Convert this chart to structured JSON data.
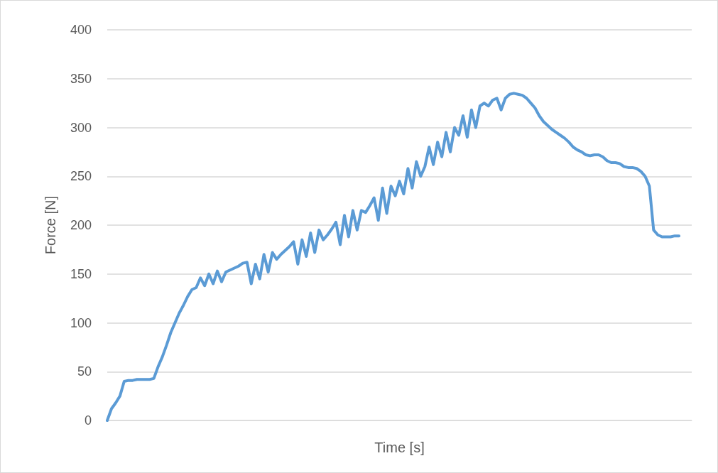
{
  "chart_data": {
    "type": "line",
    "xlabel": "Time [s]",
    "ylabel": "Force [N]",
    "categories": [
      null,
      null,
      null,
      null,
      null,
      null,
      null,
      null,
      null,
      null,
      null,
      null,
      null,
      null,
      null,
      null,
      null,
      null,
      null,
      null,
      null,
      null,
      null,
      null,
      null,
      null,
      null,
      null,
      null,
      null,
      null,
      null,
      null,
      null,
      null,
      null,
      null,
      null,
      null,
      null,
      null,
      null,
      null,
      null,
      null,
      null,
      null,
      null,
      null,
      null,
      null,
      null,
      null,
      null,
      null,
      null,
      null,
      null,
      null,
      null,
      null,
      null,
      null,
      null,
      null,
      null,
      null,
      null,
      null,
      null,
      null,
      null,
      null,
      null,
      null,
      null,
      null,
      null,
      null,
      null,
      null,
      null,
      null,
      null,
      null,
      null,
      null,
      null,
      null,
      null,
      null,
      null,
      null,
      null,
      null,
      null,
      null,
      null,
      null,
      null,
      null,
      null,
      null,
      null,
      null,
      null,
      null,
      null,
      null,
      null,
      null,
      null,
      null,
      null,
      null,
      null,
      null,
      null,
      null,
      null,
      null,
      null,
      null,
      null,
      null,
      null,
      null,
      null,
      null,
      null,
      null,
      null,
      null,
      null,
      null,
      null,
      null,
      null,
      null
    ],
    "series": [
      {
        "color": "#5b9bd5",
        "values": [
          0,
          12,
          18,
          25,
          40,
          41,
          41,
          42,
          42,
          42,
          42,
          43,
          55,
          65,
          77,
          90,
          100,
          110,
          118,
          127,
          134,
          136,
          146,
          138,
          150,
          140,
          153,
          142,
          152,
          154,
          156,
          158,
          161,
          162,
          140,
          160,
          145,
          170,
          152,
          172,
          165,
          170,
          174,
          178,
          183,
          160,
          185,
          168,
          192,
          172,
          195,
          185,
          190,
          196,
          203,
          180,
          210,
          188,
          215,
          195,
          215,
          213,
          220,
          228,
          205,
          238,
          212,
          240,
          230,
          245,
          232,
          258,
          238,
          265,
          250,
          260,
          280,
          262,
          285,
          270,
          295,
          275,
          300,
          292,
          312,
          290,
          318,
          300,
          322,
          325,
          322,
          328,
          330,
          318,
          330,
          334,
          335,
          334,
          333,
          330,
          325,
          320,
          312,
          306,
          302,
          298,
          295,
          292,
          289,
          285,
          280,
          277,
          275,
          272,
          271,
          272,
          272,
          270,
          266,
          264,
          264,
          263,
          260,
          259,
          259,
          258,
          255,
          250,
          240,
          195,
          190,
          188,
          188,
          188,
          189,
          189,
          null,
          null,
          null
        ]
      }
    ],
    "ylim": [
      0,
      400
    ],
    "yticks": [
      0,
      50,
      100,
      150,
      200,
      250,
      300,
      350,
      400
    ],
    "grid": "y",
    "line_style": "solid",
    "tick_labels": "y"
  }
}
